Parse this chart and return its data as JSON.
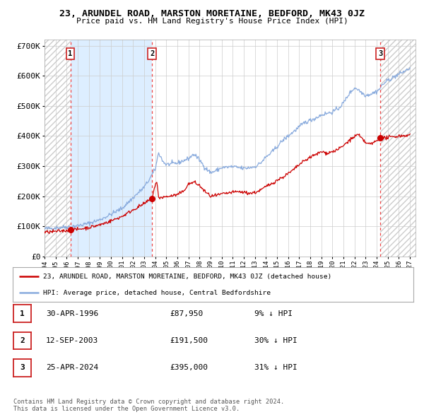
{
  "title": "23, ARUNDEL ROAD, MARSTON MORETAINE, BEDFORD, MK43 0JZ",
  "subtitle": "Price paid vs. HM Land Registry's House Price Index (HPI)",
  "xlim": [
    1994.0,
    2027.5
  ],
  "ylim": [
    0,
    720000
  ],
  "yticks": [
    0,
    100000,
    200000,
    300000,
    400000,
    500000,
    600000,
    700000
  ],
  "ytick_labels": [
    "£0",
    "£100K",
    "£200K",
    "£300K",
    "£400K",
    "£500K",
    "£600K",
    "£700K"
  ],
  "sale_points": [
    {
      "year": 1996.33,
      "price": 87950,
      "label": "1"
    },
    {
      "year": 2003.7,
      "price": 191500,
      "label": "2"
    },
    {
      "year": 2024.32,
      "price": 395000,
      "label": "3"
    }
  ],
  "shaded_region": [
    1996.33,
    2003.7
  ],
  "legend_red": "23, ARUNDEL ROAD, MARSTON MORETAINE, BEDFORD, MK43 0JZ (detached house)",
  "legend_blue": "HPI: Average price, detached house, Central Bedfordshire",
  "table_rows": [
    {
      "num": "1",
      "date": "30-APR-1996",
      "price": "£87,950",
      "hpi": "9% ↓ HPI"
    },
    {
      "num": "2",
      "date": "12-SEP-2003",
      "price": "£191,500",
      "hpi": "30% ↓ HPI"
    },
    {
      "num": "3",
      "date": "25-APR-2024",
      "price": "£395,000",
      "hpi": "31% ↓ HPI"
    }
  ],
  "footnote": "Contains HM Land Registry data © Crown copyright and database right 2024.\nThis data is licensed under the Open Government Licence v3.0.",
  "bg_color": "#ffffff",
  "plot_bg_color": "#ffffff",
  "grid_color": "#cccccc",
  "red_line_color": "#cc0000",
  "blue_line_color": "#88aadd",
  "shaded_color": "#ddeeff",
  "point_color": "#cc0000",
  "dashed_red_color": "#ee4444",
  "dashed_grey_color": "#ee4444",
  "hatch_color": "#cccccc"
}
